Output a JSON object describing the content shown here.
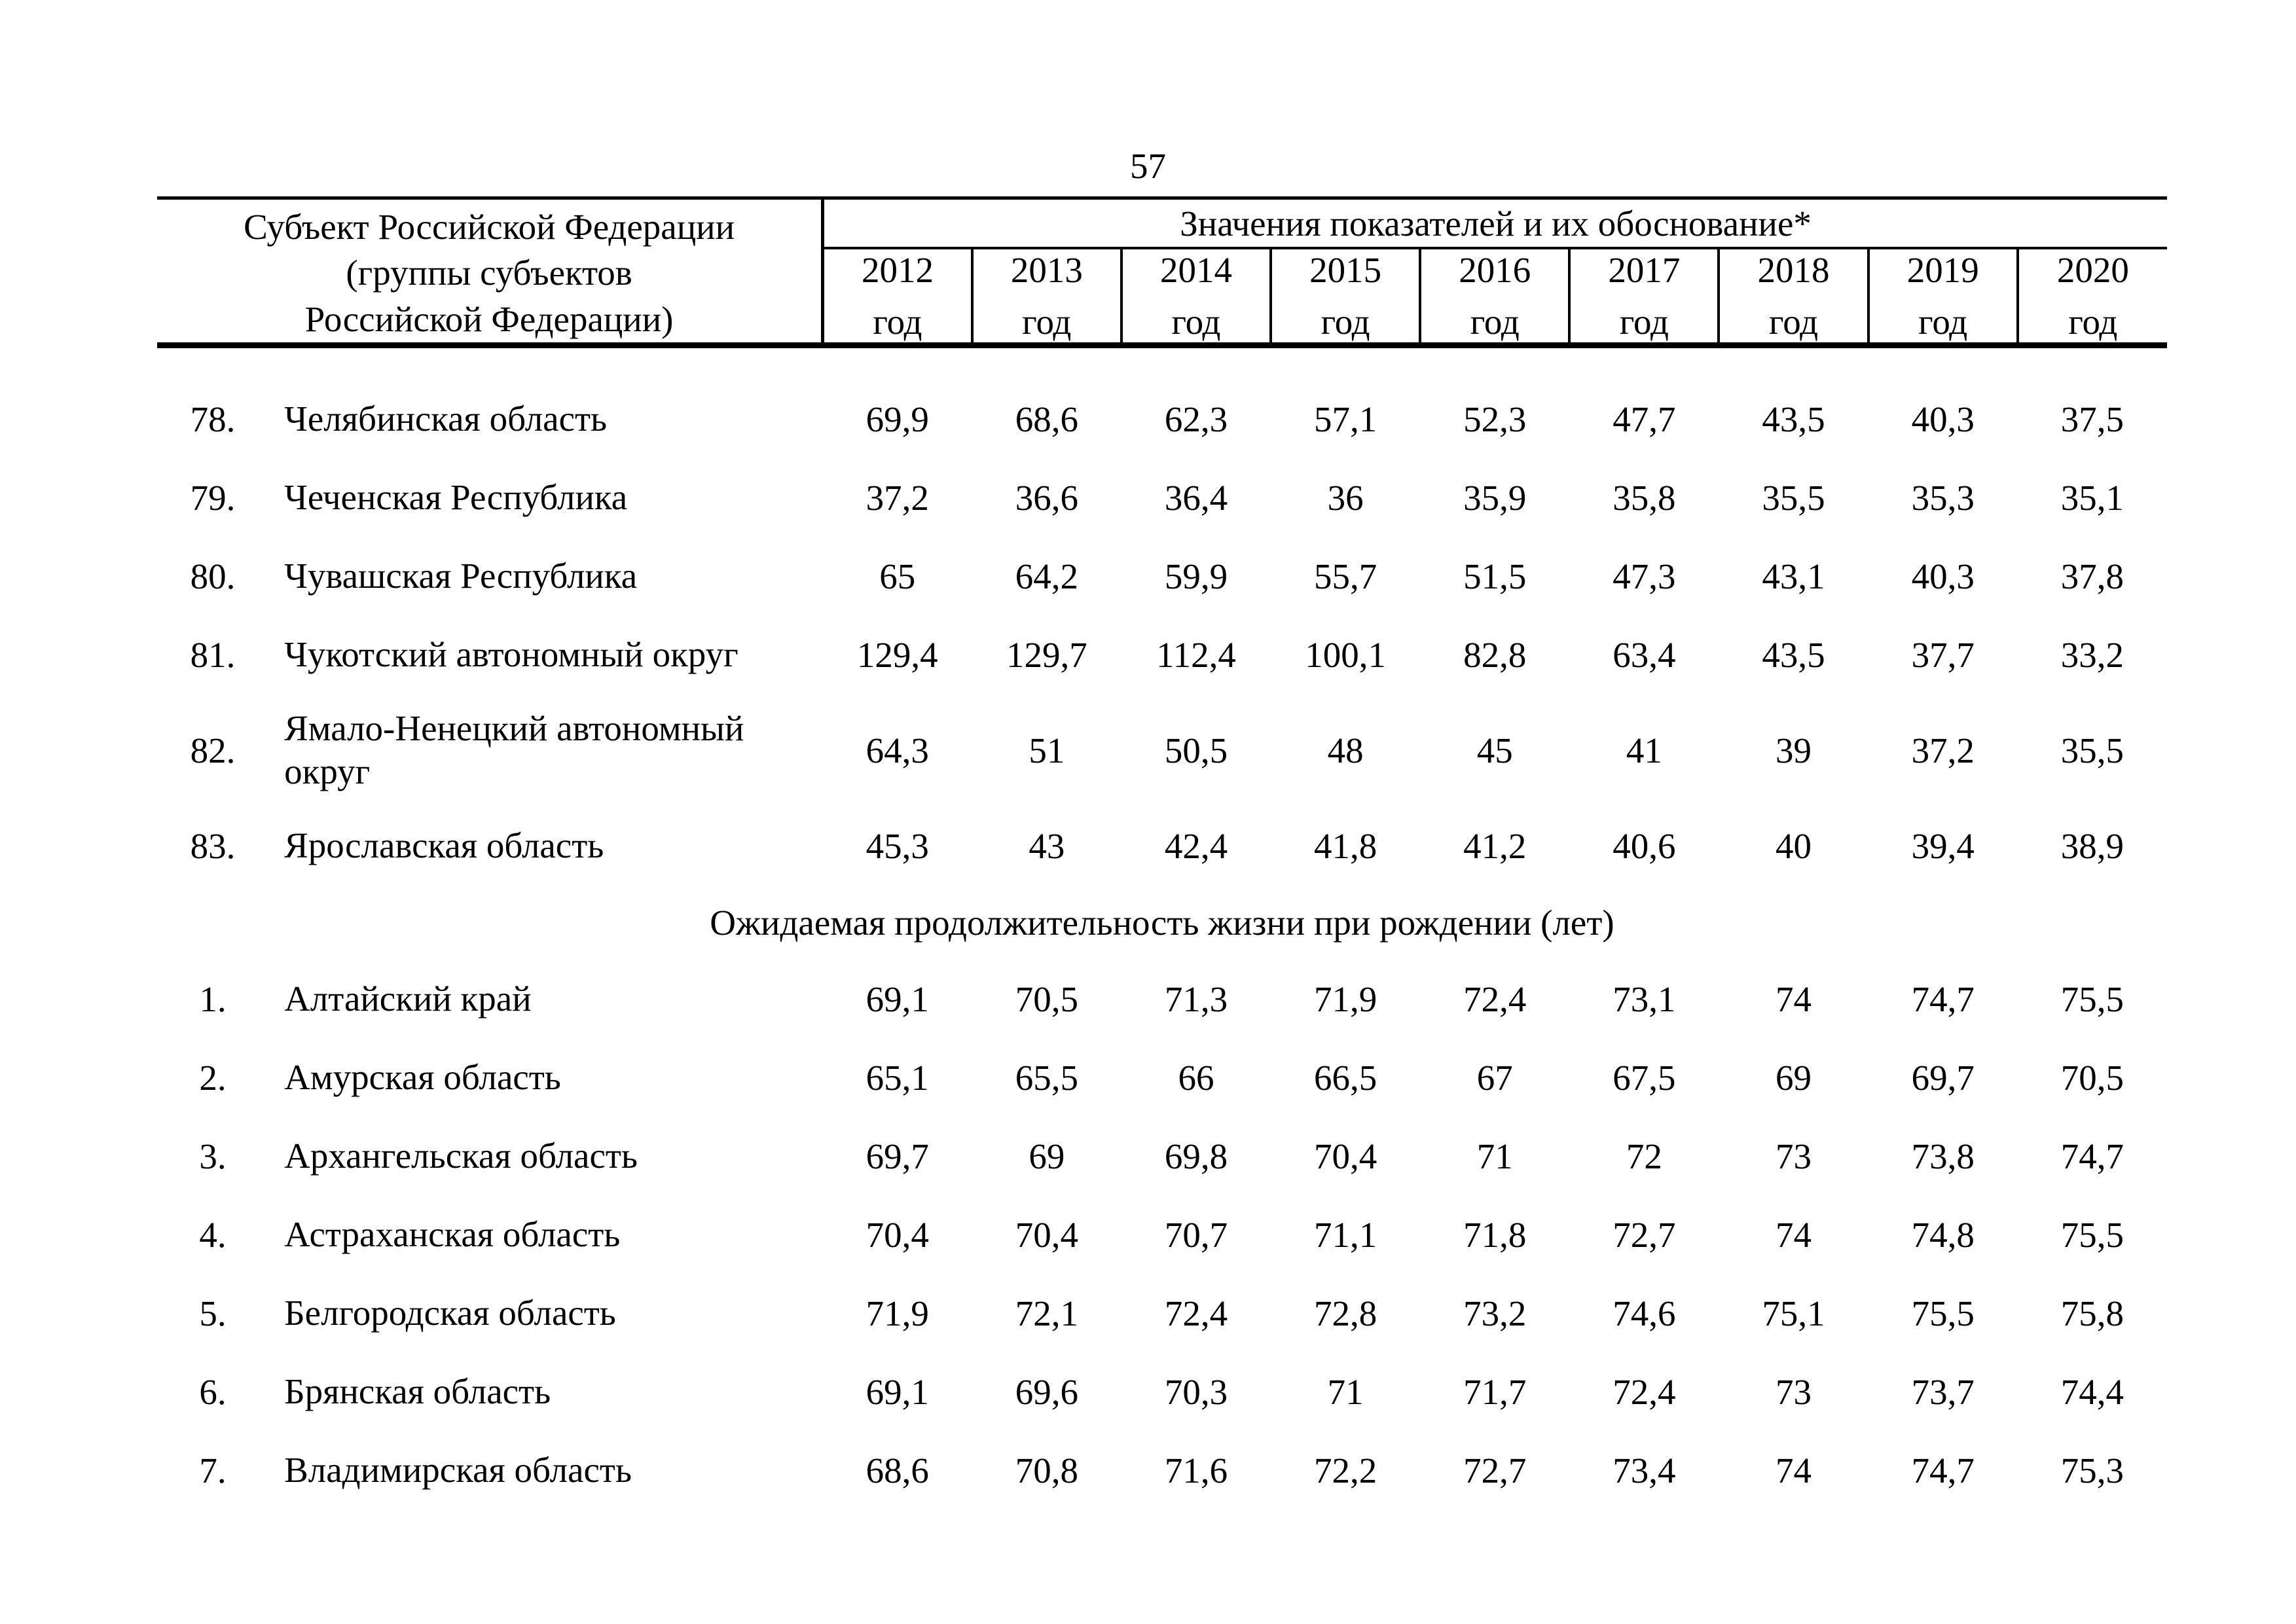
{
  "page": {
    "number": "57"
  },
  "table": {
    "subject_header": "Субъект Российской Федерации\n(группы субъектов\nРоссийской Федерации)",
    "values_header": "Значения показателей и их обоснование*",
    "year_label": "год",
    "years": [
      "2012",
      "2013",
      "2014",
      "2015",
      "2016",
      "2017",
      "2018",
      "2019",
      "2020"
    ],
    "rows_top": [
      {
        "num": "78.",
        "name": "Челябинская область",
        "values": [
          "69,9",
          "68,6",
          "62,3",
          "57,1",
          "52,3",
          "47,7",
          "43,5",
          "40,3",
          "37,5"
        ]
      },
      {
        "num": "79.",
        "name": "Чеченская Республика",
        "values": [
          "37,2",
          "36,6",
          "36,4",
          "36",
          "35,9",
          "35,8",
          "35,5",
          "35,3",
          "35,1"
        ]
      },
      {
        "num": "80.",
        "name": "Чувашская Республика",
        "values": [
          "65",
          "64,2",
          "59,9",
          "55,7",
          "51,5",
          "47,3",
          "43,1",
          "40,3",
          "37,8"
        ]
      },
      {
        "num": "81.",
        "name": "Чукотский автономный округ",
        "values": [
          "129,4",
          "129,7",
          "112,4",
          "100,1",
          "82,8",
          "63,4",
          "43,5",
          "37,7",
          "33,2"
        ]
      },
      {
        "num": "82.",
        "name": "Ямало-Ненецкий автономный\nокруг",
        "values": [
          "64,3",
          "51",
          "50,5",
          "48",
          "45",
          "41",
          "39",
          "37,2",
          "35,5"
        ]
      },
      {
        "num": "83.",
        "name": "Ярославская область",
        "values": [
          "45,3",
          "43",
          "42,4",
          "41,8",
          "41,2",
          "40,6",
          "40",
          "39,4",
          "38,9"
        ]
      }
    ],
    "section_header": "Ожидаемая продолжительность жизни при рождении (лет)",
    "rows_bottom": [
      {
        "num": "1.",
        "name": "Алтайский край",
        "values": [
          "69,1",
          "70,5",
          "71,3",
          "71,9",
          "72,4",
          "73,1",
          "74",
          "74,7",
          "75,5"
        ]
      },
      {
        "num": "2.",
        "name": "Амурская область",
        "values": [
          "65,1",
          "65,5",
          "66",
          "66,5",
          "67",
          "67,5",
          "69",
          "69,7",
          "70,5"
        ]
      },
      {
        "num": "3.",
        "name": "Архангельская область",
        "values": [
          "69,7",
          "69",
          "69,8",
          "70,4",
          "71",
          "72",
          "73",
          "73,8",
          "74,7"
        ]
      },
      {
        "num": "4.",
        "name": "Астраханская область",
        "values": [
          "70,4",
          "70,4",
          "70,7",
          "71,1",
          "71,8",
          "72,7",
          "74",
          "74,8",
          "75,5"
        ]
      },
      {
        "num": "5.",
        "name": "Белгородская область",
        "values": [
          "71,9",
          "72,1",
          "72,4",
          "72,8",
          "73,2",
          "74,6",
          "75,1",
          "75,5",
          "75,8"
        ]
      },
      {
        "num": "6.",
        "name": "Брянская область",
        "values": [
          "69,1",
          "69,6",
          "70,3",
          "71",
          "71,7",
          "72,4",
          "73",
          "73,7",
          "74,4"
        ]
      },
      {
        "num": "7.",
        "name": "Владимирская область",
        "values": [
          "68,6",
          "70,8",
          "71,6",
          "72,2",
          "72,7",
          "73,4",
          "74",
          "74,7",
          "75,3"
        ]
      }
    ]
  }
}
